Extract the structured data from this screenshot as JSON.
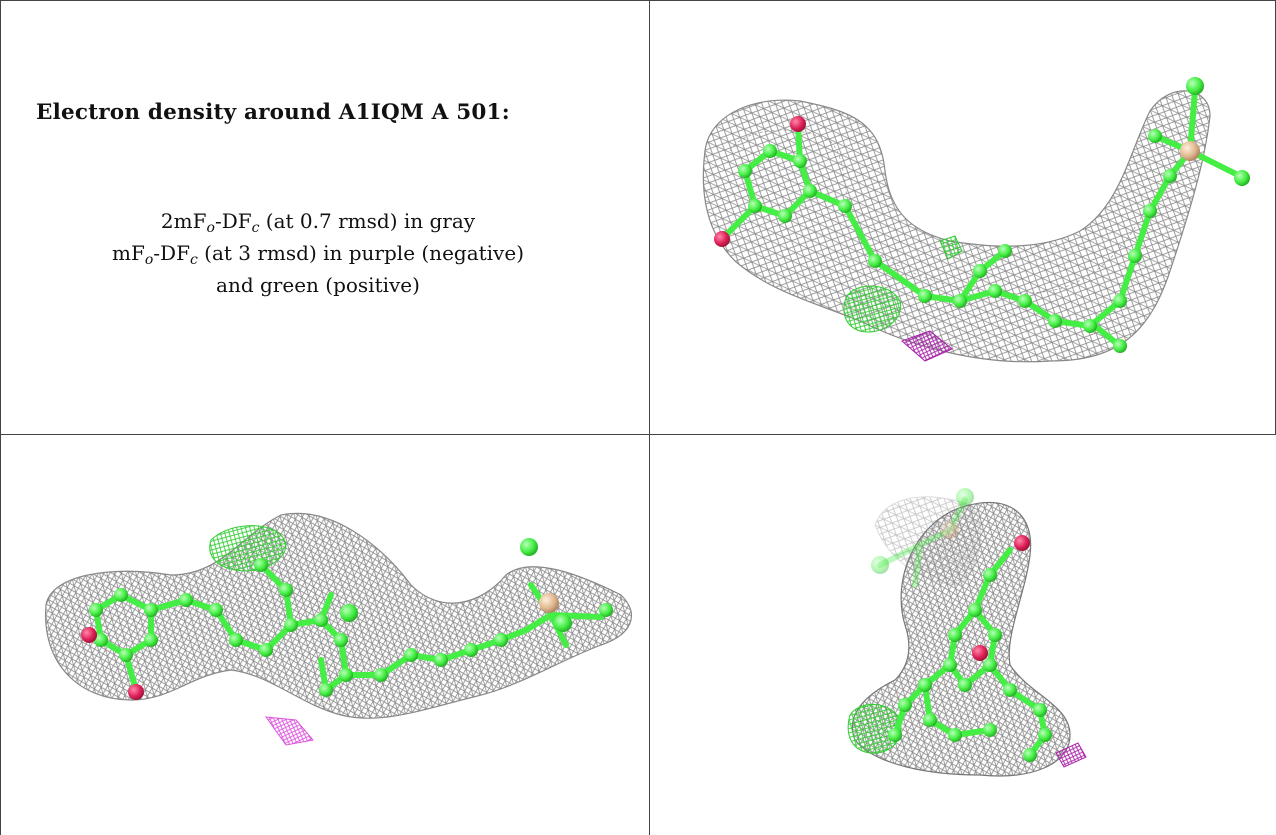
{
  "title": "Electron density around A1IQM A 501:",
  "legend": {
    "line1_prefix": "2mF",
    "line1_sub_o": "o",
    "line1_mid": "-DF",
    "line1_sub_c": "c",
    "line1_suffix": " (at 0.7 rmsd) in gray",
    "line2_prefix": "mF",
    "line2_sub_o": "o",
    "line2_mid": "-DF",
    "line2_sub_c": "c",
    "line2_suffix": " (at 3 rmsd) in purple (negative)",
    "line3": "and green (positive)"
  },
  "colors": {
    "mesh_gray": "#9a9a9a",
    "carbon": "#44ee44",
    "oxygen": "#e0225a",
    "silicon": "#e0b890",
    "negative": "#aa22aa",
    "positive": "#33cc33"
  }
}
